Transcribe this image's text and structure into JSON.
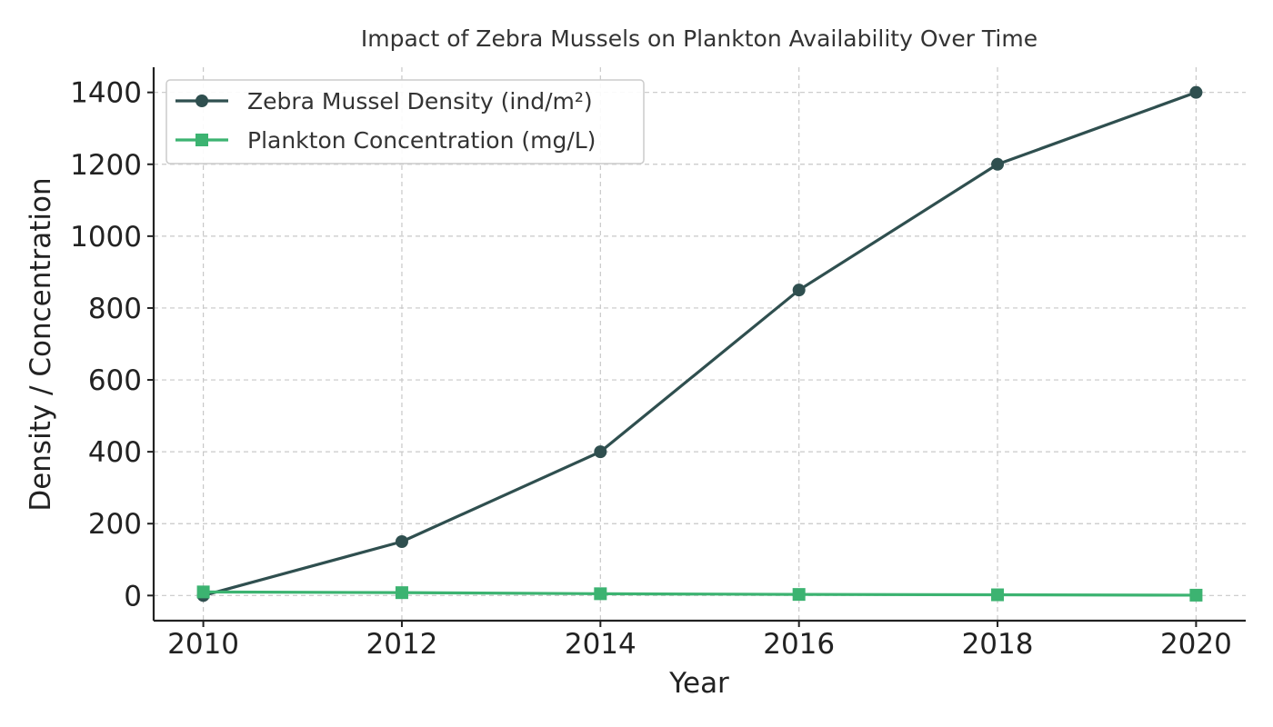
{
  "chart_data": {
    "type": "line",
    "title": "Impact of Zebra Mussels on Plankton Availability Over Time",
    "xlabel": "Year",
    "ylabel": "Density / Concentration",
    "x": [
      2010,
      2012,
      2014,
      2016,
      2018,
      2020
    ],
    "xticks": [
      2010,
      2012,
      2014,
      2016,
      2018,
      2020
    ],
    "xlim": [
      2009.5,
      2020.5
    ],
    "yticks": [
      0,
      200,
      400,
      600,
      800,
      1000,
      1200,
      1400
    ],
    "ylim": [
      -70,
      1470
    ],
    "grid": true,
    "legend": "top-left",
    "series": [
      {
        "name": "Zebra Mussel Density (ind/m²)",
        "values": [
          0,
          150,
          400,
          850,
          1200,
          1400
        ],
        "color": "#2f4f4f",
        "marker": "circle"
      },
      {
        "name": "Plankton Concentration (mg/L)",
        "values": [
          10,
          8,
          5,
          3,
          2,
          1
        ],
        "color": "#3cb371",
        "marker": "square"
      }
    ]
  }
}
